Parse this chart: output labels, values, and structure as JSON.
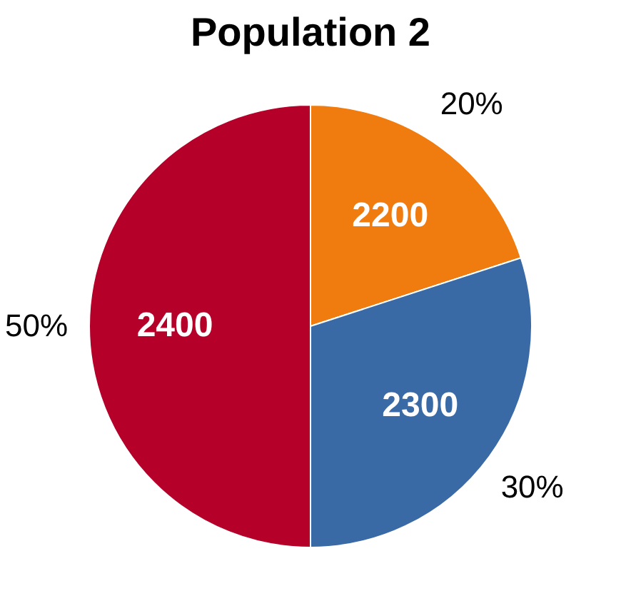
{
  "chart_data": {
    "type": "pie",
    "title": "Population 2",
    "categories": [
      null,
      null,
      null
    ],
    "values": [
      20,
      30,
      50
    ],
    "value_labels": [
      "20%",
      "30%",
      "50%"
    ],
    "annotations": [
      "2200",
      "2300",
      "2400"
    ],
    "colors": [
      "#f07c10",
      "#3a6aa5",
      "#b5002a"
    ],
    "legend": false
  }
}
